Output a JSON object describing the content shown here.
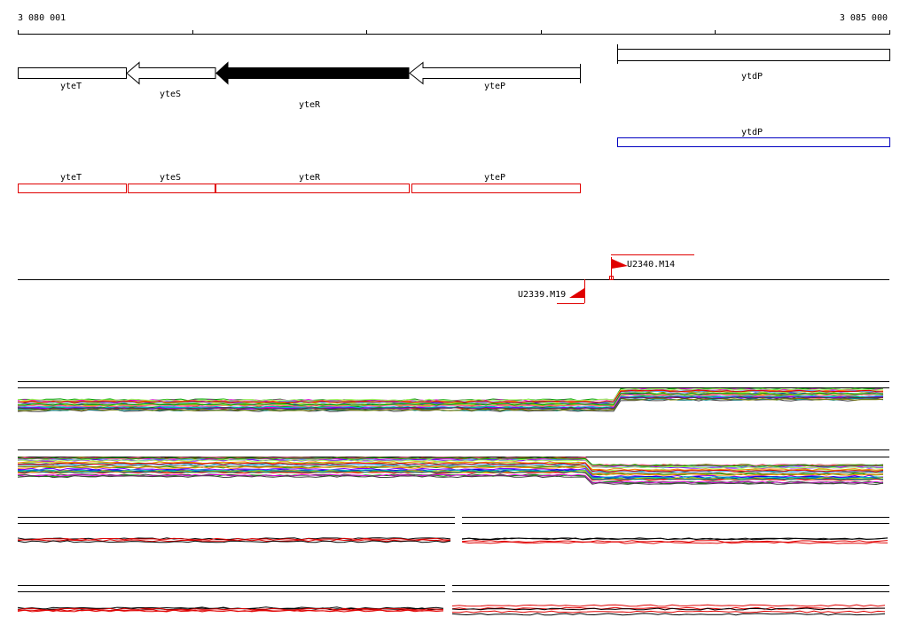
{
  "ruler": {
    "start": "3 080 001",
    "end": "3 085 000"
  },
  "genes": [
    {
      "label": "yteT"
    },
    {
      "label": "yteS"
    },
    {
      "label": "yteR"
    },
    {
      "label": "yteP"
    },
    {
      "label": "ytdP"
    }
  ],
  "transcript": {
    "label": "ytdP"
  },
  "cds": [
    {
      "label": "yteT"
    },
    {
      "label": "yteS"
    },
    {
      "label": "yteR"
    },
    {
      "label": "yteP"
    }
  ],
  "markers": [
    {
      "label": "U2340.M14"
    },
    {
      "label": "U2339.M19"
    }
  ]
}
